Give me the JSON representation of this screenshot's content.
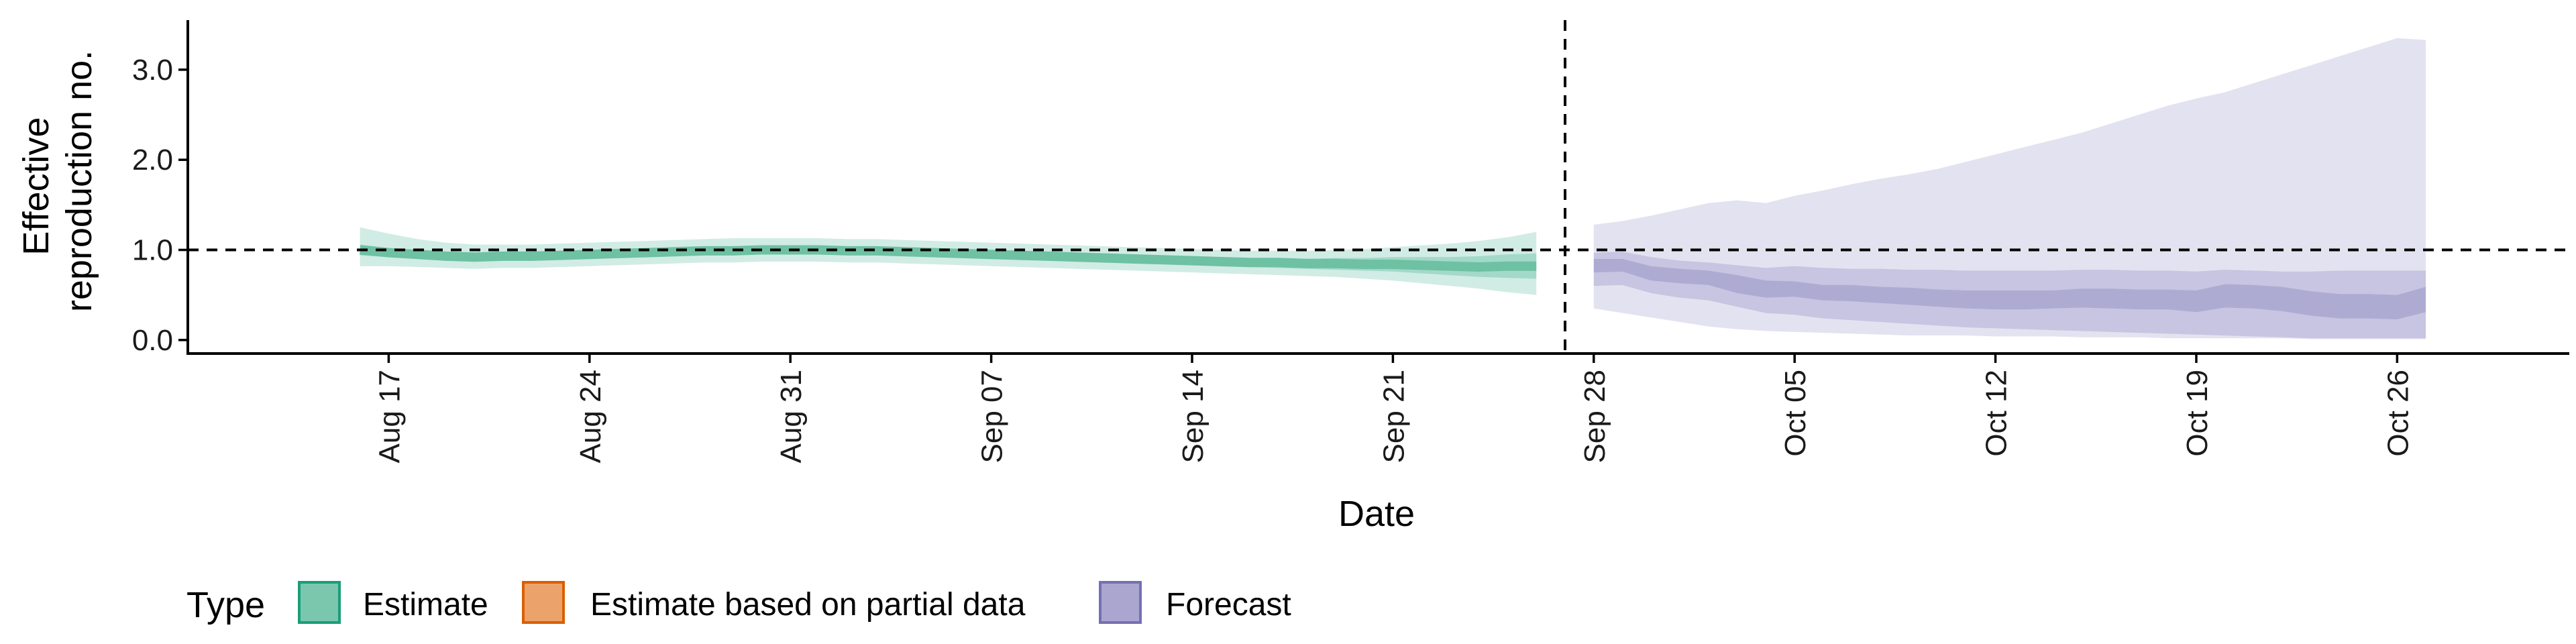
{
  "chart_data": {
    "type": "area",
    "xlabel": "Date",
    "ylabel_lines": [
      "Effective",
      "reproduction no."
    ],
    "x_ticks": [
      "Aug 17",
      "Aug 24",
      "Aug 31",
      "Sep 07",
      "Sep 14",
      "Sep 21",
      "Sep 28",
      "Oct 05",
      "Oct 12",
      "Oct 19",
      "Oct 26"
    ],
    "y_ticks": [
      "0.0",
      "1.0",
      "2.0",
      "3.0"
    ],
    "y_tick_values": [
      0,
      1,
      2,
      3
    ],
    "x_range": [
      "2020-08-10",
      "2020-11-01"
    ],
    "ylim": [
      -0.15,
      3.55
    ],
    "reference_line_y": 1.0,
    "forecast_divider_date": "2020-09-27",
    "grid": false,
    "legend": {
      "title": "Type",
      "position": "bottom-left",
      "items": [
        {
          "label": "Estimate",
          "fill": "#7ac7ad",
          "stroke": "#1b9e77"
        },
        {
          "label": "Estimate based on partial data",
          "fill": "#eba36b",
          "stroke": "#d95f02"
        },
        {
          "label": "Forecast",
          "fill": "#aaa6d0",
          "stroke": "#7570b3"
        }
      ]
    },
    "series": [
      {
        "name": "Estimate",
        "color": "#1b9e77",
        "dates": [
          "2020-08-16",
          "2020-08-17",
          "2020-08-18",
          "2020-08-19",
          "2020-08-20",
          "2020-08-21",
          "2020-08-22",
          "2020-08-23",
          "2020-08-24",
          "2020-08-25",
          "2020-08-26",
          "2020-08-27",
          "2020-08-28",
          "2020-08-29",
          "2020-08-30",
          "2020-08-31",
          "2020-09-01",
          "2020-09-02",
          "2020-09-03",
          "2020-09-04",
          "2020-09-05",
          "2020-09-06",
          "2020-09-07",
          "2020-09-08",
          "2020-09-09",
          "2020-09-10",
          "2020-09-11",
          "2020-09-12",
          "2020-09-13",
          "2020-09-14",
          "2020-09-15",
          "2020-09-16",
          "2020-09-17",
          "2020-09-18",
          "2020-09-19",
          "2020-09-20",
          "2020-09-21",
          "2020-09-22",
          "2020-09-23",
          "2020-09-24",
          "2020-09-25",
          "2020-09-26"
        ],
        "median": [
          1.0,
          0.97,
          0.95,
          0.93,
          0.92,
          0.93,
          0.93,
          0.94,
          0.95,
          0.96,
          0.97,
          0.98,
          0.99,
          0.99,
          1.0,
          1.0,
          1.0,
          0.99,
          0.99,
          0.98,
          0.97,
          0.96,
          0.95,
          0.94,
          0.93,
          0.92,
          0.91,
          0.9,
          0.89,
          0.88,
          0.87,
          0.86,
          0.86,
          0.85,
          0.85,
          0.84,
          0.84,
          0.83,
          0.82,
          0.81,
          0.82,
          0.82
        ],
        "ci50": [
          [
            0.94,
            1.06
          ],
          [
            0.92,
            1.02
          ],
          [
            0.9,
            1.0
          ],
          [
            0.88,
            0.98
          ],
          [
            0.87,
            0.97
          ],
          [
            0.88,
            0.98
          ],
          [
            0.88,
            0.98
          ],
          [
            0.89,
            0.99
          ],
          [
            0.9,
            1.0
          ],
          [
            0.91,
            1.01
          ],
          [
            0.92,
            1.02
          ],
          [
            0.93,
            1.03
          ],
          [
            0.94,
            1.04
          ],
          [
            0.94,
            1.04
          ],
          [
            0.95,
            1.05
          ],
          [
            0.95,
            1.05
          ],
          [
            0.95,
            1.05
          ],
          [
            0.94,
            1.04
          ],
          [
            0.94,
            1.04
          ],
          [
            0.93,
            1.03
          ],
          [
            0.92,
            1.02
          ],
          [
            0.91,
            1.01
          ],
          [
            0.9,
            1.0
          ],
          [
            0.89,
            0.99
          ],
          [
            0.88,
            0.98
          ],
          [
            0.87,
            0.97
          ],
          [
            0.86,
            0.96
          ],
          [
            0.85,
            0.95
          ],
          [
            0.84,
            0.94
          ],
          [
            0.83,
            0.93
          ],
          [
            0.82,
            0.92
          ],
          [
            0.81,
            0.91
          ],
          [
            0.8,
            0.91
          ],
          [
            0.79,
            0.9
          ],
          [
            0.78,
            0.91
          ],
          [
            0.77,
            0.91
          ],
          [
            0.76,
            0.92
          ],
          [
            0.74,
            0.92
          ],
          [
            0.72,
            0.92
          ],
          [
            0.7,
            0.93
          ],
          [
            0.69,
            0.95
          ],
          [
            0.68,
            0.96
          ]
        ],
        "ci90": [
          [
            0.82,
            1.25
          ],
          [
            0.82,
            1.18
          ],
          [
            0.81,
            1.12
          ],
          [
            0.8,
            1.08
          ],
          [
            0.79,
            1.06
          ],
          [
            0.8,
            1.06
          ],
          [
            0.8,
            1.06
          ],
          [
            0.81,
            1.07
          ],
          [
            0.82,
            1.08
          ],
          [
            0.83,
            1.09
          ],
          [
            0.84,
            1.1
          ],
          [
            0.85,
            1.11
          ],
          [
            0.86,
            1.12
          ],
          [
            0.86,
            1.13
          ],
          [
            0.87,
            1.13
          ],
          [
            0.87,
            1.13
          ],
          [
            0.87,
            1.13
          ],
          [
            0.86,
            1.12
          ],
          [
            0.86,
            1.12
          ],
          [
            0.85,
            1.11
          ],
          [
            0.84,
            1.1
          ],
          [
            0.83,
            1.09
          ],
          [
            0.82,
            1.08
          ],
          [
            0.81,
            1.07
          ],
          [
            0.8,
            1.06
          ],
          [
            0.79,
            1.05
          ],
          [
            0.78,
            1.04
          ],
          [
            0.77,
            1.03
          ],
          [
            0.76,
            1.02
          ],
          [
            0.75,
            1.01
          ],
          [
            0.74,
            1.0
          ],
          [
            0.73,
            0.99
          ],
          [
            0.72,
            0.99
          ],
          [
            0.71,
            0.99
          ],
          [
            0.7,
            1.0
          ],
          [
            0.68,
            1.01
          ],
          [
            0.66,
            1.03
          ],
          [
            0.63,
            1.05
          ],
          [
            0.6,
            1.07
          ],
          [
            0.57,
            1.1
          ],
          [
            0.53,
            1.14
          ],
          [
            0.5,
            1.2
          ]
        ]
      },
      {
        "name": "Forecast",
        "color": "#7570b3",
        "dates": [
          "2020-09-28",
          "2020-09-29",
          "2020-09-30",
          "2020-10-01",
          "2020-10-02",
          "2020-10-03",
          "2020-10-04",
          "2020-10-05",
          "2020-10-06",
          "2020-10-07",
          "2020-10-08",
          "2020-10-09",
          "2020-10-10",
          "2020-10-11",
          "2020-10-12",
          "2020-10-13",
          "2020-10-14",
          "2020-10-15",
          "2020-10-16",
          "2020-10-17",
          "2020-10-18",
          "2020-10-19",
          "2020-10-20",
          "2020-10-21",
          "2020-10-22",
          "2020-10-23",
          "2020-10-24",
          "2020-10-25",
          "2020-10-26",
          "2020-10-27"
        ],
        "median": [
          0.82,
          0.82,
          0.74,
          0.7,
          0.69,
          0.62,
          0.56,
          0.56,
          0.52,
          0.52,
          0.5,
          0.48,
          0.46,
          0.45,
          0.44,
          0.44,
          0.45,
          0.46,
          0.46,
          0.45,
          0.45,
          0.43,
          0.49,
          0.48,
          0.45,
          0.4,
          0.37,
          0.37,
          0.36,
          0.45
        ],
        "ci50": [
          [
            0.75,
            0.9
          ],
          [
            0.76,
            0.9
          ],
          [
            0.66,
            0.82
          ],
          [
            0.63,
            0.79
          ],
          [
            0.61,
            0.77
          ],
          [
            0.52,
            0.72
          ],
          [
            0.47,
            0.66
          ],
          [
            0.48,
            0.65
          ],
          [
            0.44,
            0.61
          ],
          [
            0.43,
            0.61
          ],
          [
            0.41,
            0.59
          ],
          [
            0.39,
            0.58
          ],
          [
            0.37,
            0.56
          ],
          [
            0.35,
            0.55
          ],
          [
            0.34,
            0.55
          ],
          [
            0.34,
            0.55
          ],
          [
            0.35,
            0.55
          ],
          [
            0.36,
            0.57
          ],
          [
            0.35,
            0.57
          ],
          [
            0.34,
            0.56
          ],
          [
            0.34,
            0.56
          ],
          [
            0.31,
            0.55
          ],
          [
            0.36,
            0.62
          ],
          [
            0.35,
            0.61
          ],
          [
            0.32,
            0.59
          ],
          [
            0.27,
            0.54
          ],
          [
            0.24,
            0.51
          ],
          [
            0.24,
            0.51
          ],
          [
            0.23,
            0.5
          ],
          [
            0.31,
            0.59
          ]
        ],
        "ci90": [
          [
            0.35,
            1.28
          ],
          [
            0.3,
            1.32
          ],
          [
            0.25,
            1.38
          ],
          [
            0.2,
            1.45
          ],
          [
            0.15,
            1.52
          ],
          [
            0.12,
            1.55
          ],
          [
            0.1,
            1.52
          ],
          [
            0.09,
            1.6
          ],
          [
            0.08,
            1.66
          ],
          [
            0.07,
            1.73
          ],
          [
            0.06,
            1.79
          ],
          [
            0.05,
            1.84
          ],
          [
            0.05,
            1.9
          ],
          [
            0.05,
            1.98
          ],
          [
            0.04,
            2.06
          ],
          [
            0.04,
            2.14
          ],
          [
            0.04,
            2.22
          ],
          [
            0.03,
            2.3
          ],
          [
            0.03,
            2.4
          ],
          [
            0.03,
            2.5
          ],
          [
            0.02,
            2.6
          ],
          [
            0.02,
            2.68
          ],
          [
            0.02,
            2.75
          ],
          [
            0.02,
            2.85
          ],
          [
            0.02,
            2.95
          ],
          [
            0.01,
            3.05
          ],
          [
            0.01,
            3.15
          ],
          [
            0.01,
            3.25
          ],
          [
            0.01,
            3.35
          ],
          [
            0.01,
            3.33
          ]
        ],
        "ci90_inner_upper": [
          0.97,
          0.98,
          0.92,
          0.88,
          0.86,
          0.83,
          0.8,
          0.82,
          0.8,
          0.79,
          0.79,
          0.78,
          0.78,
          0.77,
          0.77,
          0.77,
          0.77,
          0.78,
          0.78,
          0.77,
          0.77,
          0.76,
          0.78,
          0.77,
          0.76,
          0.76,
          0.77,
          0.77,
          0.77,
          0.77
        ],
        "ci90_inner_lower": [
          0.6,
          0.61,
          0.52,
          0.47,
          0.44,
          0.37,
          0.3,
          0.28,
          0.24,
          0.22,
          0.2,
          0.18,
          0.16,
          0.14,
          0.13,
          0.12,
          0.11,
          0.1,
          0.09,
          0.08,
          0.07,
          0.06,
          0.05,
          0.04,
          0.03,
          0.02,
          0.02,
          0.02,
          0.02,
          0.02
        ]
      }
    ]
  }
}
